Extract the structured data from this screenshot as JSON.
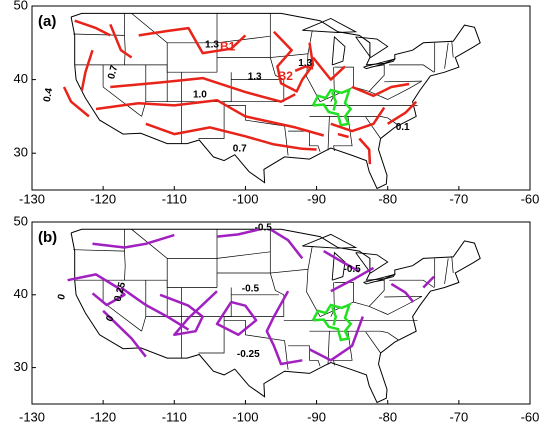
{
  "panels": [
    {
      "label": "(a)",
      "xlim": [
        -130,
        -60
      ],
      "ylim": [
        25,
        50
      ],
      "xticks": [
        -130,
        -120,
        -110,
        -100,
        -90,
        -80,
        -70,
        -60
      ],
      "yticks": [
        30,
        40,
        50
      ],
      "contour_color": "#e8241a",
      "contour_labels": [
        "1.3",
        "1.3",
        "1.3",
        "0.7",
        "0.4",
        "1.0",
        "0.7",
        "0.1"
      ],
      "region_labels": [
        "B1",
        "B2"
      ]
    },
    {
      "label": "(b)",
      "xlim": [
        -130,
        -60
      ],
      "ylim": [
        25,
        50
      ],
      "xticks": [
        -130,
        -120,
        -110,
        -100,
        -90,
        -80,
        -70,
        -60
      ],
      "yticks": [
        30,
        40,
        50
      ],
      "contour_color": "#a020c0",
      "contour_labels": [
        "-0.5",
        "-0.5",
        "-0.5",
        "-0.25",
        "0.25",
        "0",
        "0"
      ],
      "region_labels": []
    }
  ]
}
